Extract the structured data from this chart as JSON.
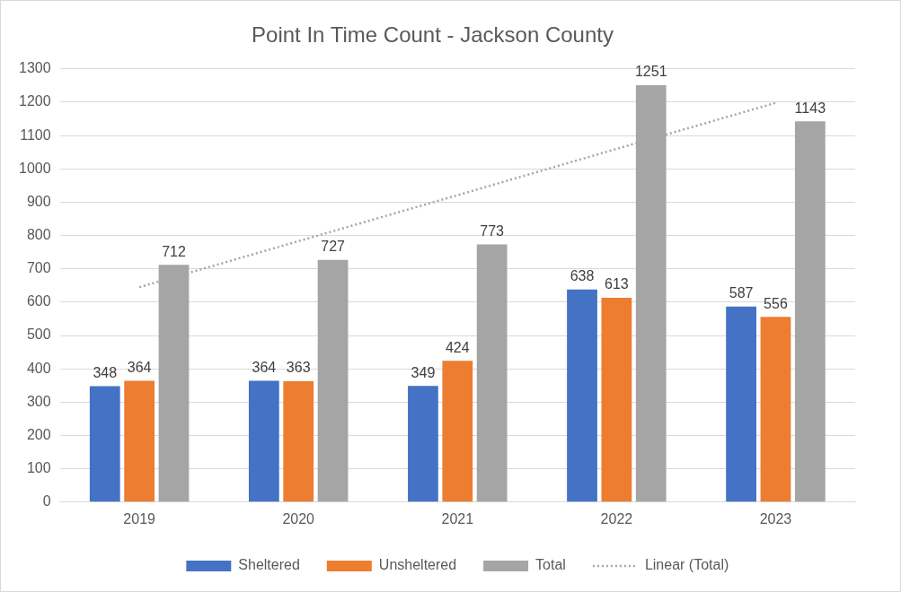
{
  "chart_data": {
    "type": "bar",
    "title": "Point In Time Count - Jackson County",
    "categories": [
      "2019",
      "2020",
      "2021",
      "2022",
      "2023"
    ],
    "series": [
      {
        "name": "Sheltered",
        "color": "#4472c4",
        "values": [
          348,
          364,
          349,
          638,
          587
        ],
        "value_labels": [
          "348",
          "364",
          "349",
          "638",
          "587"
        ]
      },
      {
        "name": "Unsheltered",
        "color": "#ed7d31",
        "values": [
          364,
          363,
          424,
          613,
          556
        ],
        "value_labels": [
          "364",
          "363",
          "424",
          "613",
          "556"
        ]
      },
      {
        "name": "Total",
        "color": "#a5a5a5",
        "values": [
          712,
          727,
          773,
          1251,
          1143
        ],
        "value_labels": [
          "712",
          "727",
          "773",
          "1251",
          "1143"
        ]
      },
      {
        "name": "Linear (Total)",
        "type": "line",
        "color": "#a5a5a5",
        "line_style": "dotted",
        "marker": "none",
        "values": [
          645,
          783,
          921,
          1060,
          1198
        ]
      }
    ],
    "ylim": [
      0,
      1300
    ],
    "yticks": [
      0,
      100,
      200,
      300,
      400,
      500,
      600,
      700,
      800,
      900,
      1000,
      1100,
      1200,
      1300
    ],
    "grid": "y",
    "legend": "bottom"
  }
}
